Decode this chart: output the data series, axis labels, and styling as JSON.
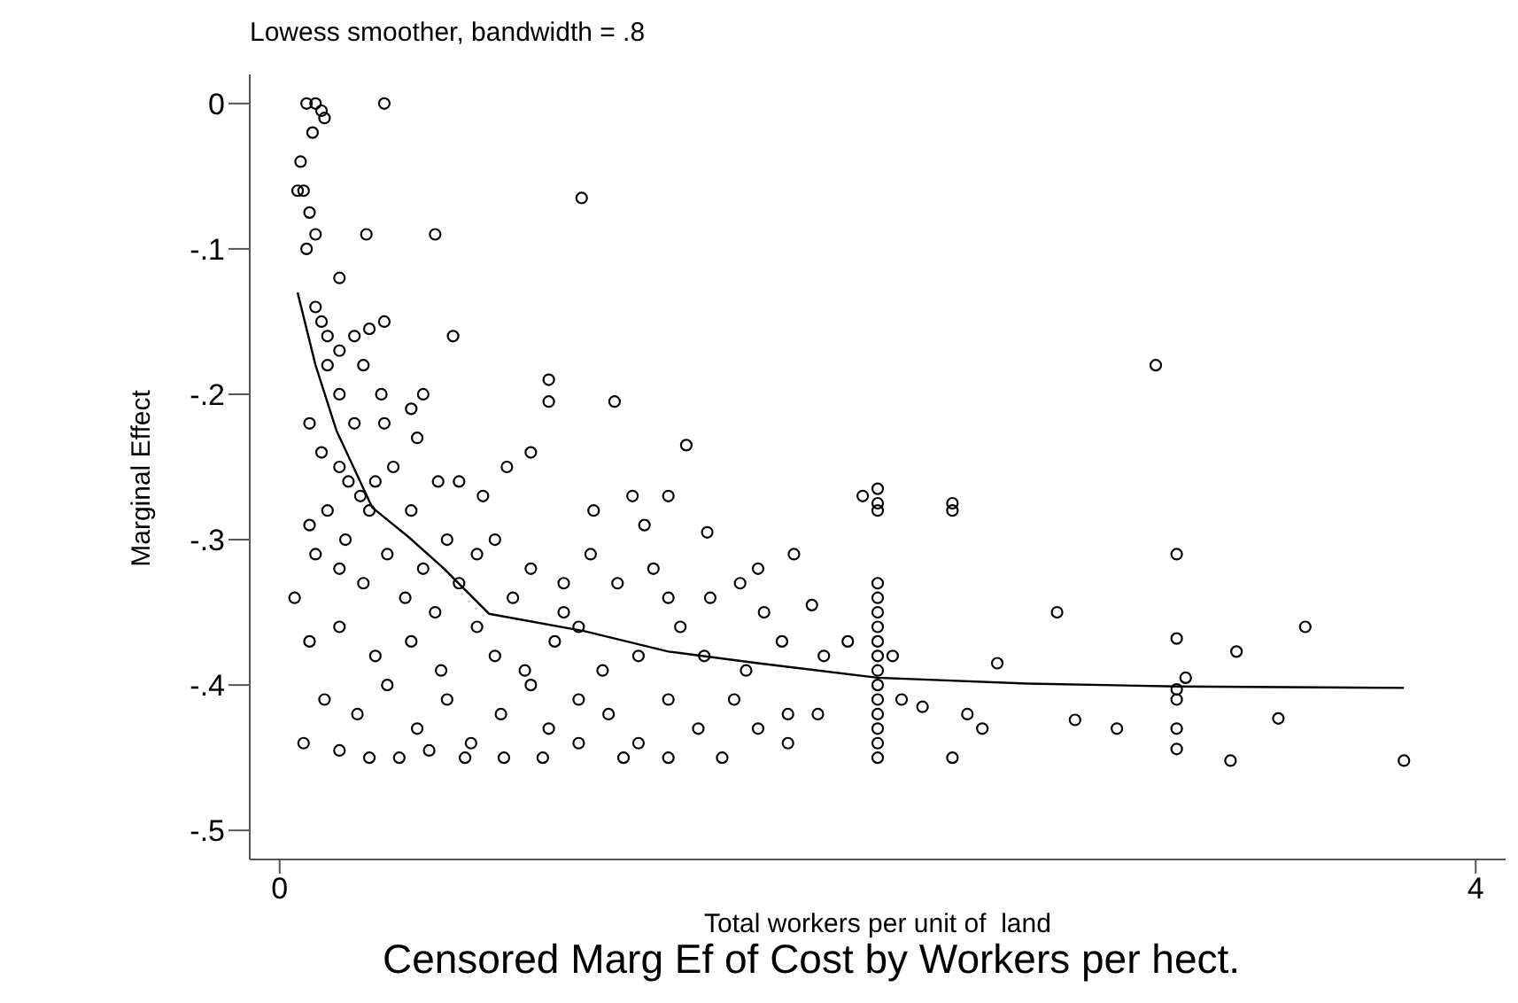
{
  "chart_data": {
    "type": "scatter",
    "title": "Censored Marg Ef of Cost by Workers per hect.",
    "subtitle": "Lowess smoother, bandwidth = .8",
    "xlabel": "Total workers per unit of  land",
    "ylabel": "Marginal Effect",
    "xlim": [
      -0.1,
      4.1
    ],
    "xticks": [
      0,
      4
    ],
    "ylim": [
      -0.52,
      0.02
    ],
    "yticks": [
      0,
      {
        "value": -0.1,
        "label": "-.1"
      },
      {
        "value": -0.2,
        "label": "-.2"
      },
      {
        "value": -0.3,
        "label": "-.3"
      },
      {
        "value": -0.4,
        "label": "-.4"
      },
      {
        "value": -0.5,
        "label": "-.5"
      }
    ],
    "grid": false,
    "legend": false,
    "marker": "circle",
    "series": [
      {
        "color": "#000000",
        "x": [
          0.09,
          0.12,
          0.35,
          0.15,
          0.11,
          0.14,
          0.07,
          0.06,
          0.08,
          0.1,
          0.12,
          0.09,
          0.29,
          0.52,
          1.01,
          0.2,
          0.12,
          0.14,
          0.16,
          0.2,
          0.25,
          0.3,
          0.35,
          0.58,
          0.16,
          0.28,
          0.34,
          0.35,
          0.2,
          0.25,
          0.9,
          0.9,
          1.12,
          0.44,
          0.48,
          0.1,
          0.14,
          0.2,
          0.23,
          0.27,
          0.32,
          0.38,
          0.46,
          0.53,
          0.6,
          0.68,
          0.76,
          0.84,
          0.16,
          0.1,
          0.22,
          0.3,
          0.44,
          0.56,
          0.72,
          1.18,
          1.36,
          1.22,
          1.43,
          1.95,
          2.25,
          2.25,
          1.3,
          1.05,
          0.12,
          0.2,
          0.28,
          0.36,
          0.42,
          0.48,
          0.6,
          0.66,
          0.78,
          0.84,
          0.95,
          1.04,
          1.13,
          1.25,
          1.3,
          1.44,
          1.6,
          1.72,
          1.54,
          0.05,
          0.52,
          0.95,
          1.62,
          1.78,
          0.1,
          0.2,
          0.32,
          0.44,
          0.54,
          0.66,
          0.72,
          0.82,
          0.92,
          1.0,
          1.08,
          1.2,
          1.34,
          1.42,
          1.56,
          1.68,
          1.82,
          1.9,
          2.05,
          2.4,
          2.6,
          3.43,
          3.2,
          0.15,
          0.26,
          0.36,
          0.46,
          0.56,
          0.64,
          0.74,
          0.84,
          0.9,
          1.0,
          1.1,
          1.2,
          1.3,
          1.4,
          1.52,
          1.6,
          1.7,
          1.8,
          2.08,
          2.15,
          2.3,
          2.35,
          2.66,
          2.8,
          3.34,
          3.03,
          0.2,
          0.3,
          0.4,
          0.5,
          0.62,
          0.75,
          0.88,
          1.0,
          1.15,
          1.3,
          1.48,
          1.7,
          2.25,
          3.18,
          3.76,
          0.08,
          2.0,
          2.0,
          2.0,
          2.0,
          2.0,
          2.0,
          2.0,
          2.0,
          2.0,
          2.0,
          2.0,
          2.0,
          2.0,
          2.0,
          2.0,
          2.0,
          2.93,
          3.0,
          3.0,
          3.0,
          3.0,
          3.0,
          3.0
        ],
        "values": [
          0,
          0,
          0,
          -0.01,
          -0.02,
          -0.005,
          -0.04,
          -0.06,
          -0.06,
          -0.075,
          -0.09,
          -0.1,
          -0.09,
          -0.09,
          -0.065,
          -0.12,
          -0.14,
          -0.15,
          -0.16,
          -0.17,
          -0.16,
          -0.155,
          -0.15,
          -0.16,
          -0.18,
          -0.18,
          -0.2,
          -0.22,
          -0.2,
          -0.22,
          -0.19,
          -0.205,
          -0.205,
          -0.21,
          -0.2,
          -0.22,
          -0.24,
          -0.25,
          -0.26,
          -0.27,
          -0.26,
          -0.25,
          -0.23,
          -0.26,
          -0.26,
          -0.27,
          -0.25,
          -0.24,
          -0.28,
          -0.29,
          -0.3,
          -0.28,
          -0.28,
          -0.3,
          -0.3,
          -0.27,
          -0.235,
          -0.29,
          -0.295,
          -0.27,
          -0.275,
          -0.28,
          -0.27,
          -0.28,
          -0.31,
          -0.32,
          -0.33,
          -0.31,
          -0.34,
          -0.32,
          -0.33,
          -0.31,
          -0.34,
          -0.32,
          -0.33,
          -0.31,
          -0.33,
          -0.32,
          -0.34,
          -0.34,
          -0.32,
          -0.31,
          -0.33,
          -0.34,
          -0.35,
          -0.35,
          -0.35,
          -0.345,
          -0.37,
          -0.36,
          -0.38,
          -0.37,
          -0.39,
          -0.36,
          -0.38,
          -0.39,
          -0.37,
          -0.36,
          -0.39,
          -0.38,
          -0.36,
          -0.38,
          -0.39,
          -0.37,
          -0.38,
          -0.37,
          -0.38,
          -0.385,
          -0.35,
          -0.36,
          -0.377,
          -0.41,
          -0.42,
          -0.4,
          -0.43,
          -0.41,
          -0.44,
          -0.42,
          -0.4,
          -0.43,
          -0.41,
          -0.42,
          -0.44,
          -0.41,
          -0.43,
          -0.41,
          -0.43,
          -0.42,
          -0.42,
          -0.41,
          -0.415,
          -0.42,
          -0.43,
          -0.424,
          -0.43,
          -0.423,
          -0.395,
          -0.445,
          -0.45,
          -0.45,
          -0.445,
          -0.45,
          -0.45,
          -0.45,
          -0.44,
          -0.45,
          -0.45,
          -0.45,
          -0.44,
          -0.45,
          -0.452,
          -0.452,
          -0.44,
          -0.265,
          -0.275,
          -0.28,
          -0.33,
          -0.34,
          -0.35,
          -0.36,
          -0.37,
          -0.38,
          -0.39,
          -0.4,
          -0.41,
          -0.42,
          -0.43,
          -0.44,
          -0.45,
          -0.18,
          -0.31,
          -0.368,
          -0.403,
          -0.41,
          -0.43,
          -0.444
        ]
      },
      {
        "type": "line",
        "color": "#000000",
        "marker": "none",
        "line_style": "solid",
        "x": [
          0.06,
          0.12,
          0.19,
          0.31,
          0.43,
          0.55,
          0.7,
          1.02,
          1.3,
          1.6,
          2.0,
          2.5,
          3.0,
          3.76
        ],
        "values": [
          -0.13,
          -0.18,
          -0.225,
          -0.278,
          -0.298,
          -0.32,
          -0.351,
          -0.363,
          -0.377,
          -0.385,
          -0.395,
          -0.399,
          -0.401,
          -0.402
        ]
      }
    ]
  }
}
